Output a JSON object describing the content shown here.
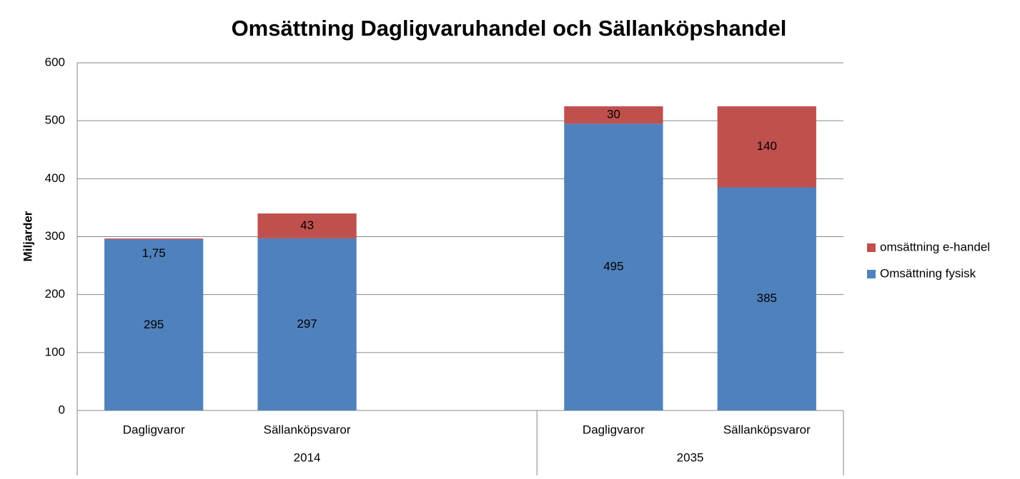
{
  "chart_data": {
    "type": "stacked_bar",
    "title": "Omsättning Dagligvaruhandel och Sällanköpshandel",
    "ylabel": "Miljarder",
    "categories": [
      "Dagligvaror",
      "Sällanköpsvaror",
      null,
      "Dagligvaror",
      "Sällanköpsvaror"
    ],
    "category_groups": [
      "2014",
      "2014",
      "2014",
      "2035",
      "2035"
    ],
    "series": [
      {
        "name": "Omsättning fysisk",
        "color": "#4f81bd",
        "values": [
          295,
          297,
          null,
          495,
          385
        ]
      },
      {
        "name": "omsättning e-handel",
        "color": "#c0504d",
        "values": [
          1.75,
          43,
          null,
          30,
          140
        ],
        "value_labels": [
          "1,75",
          "43",
          null,
          "30",
          "140"
        ]
      }
    ],
    "ylim": [
      0,
      600
    ],
    "yticks": [
      0,
      100,
      200,
      300,
      400,
      500,
      600
    ],
    "grid": true,
    "legend": "right"
  }
}
